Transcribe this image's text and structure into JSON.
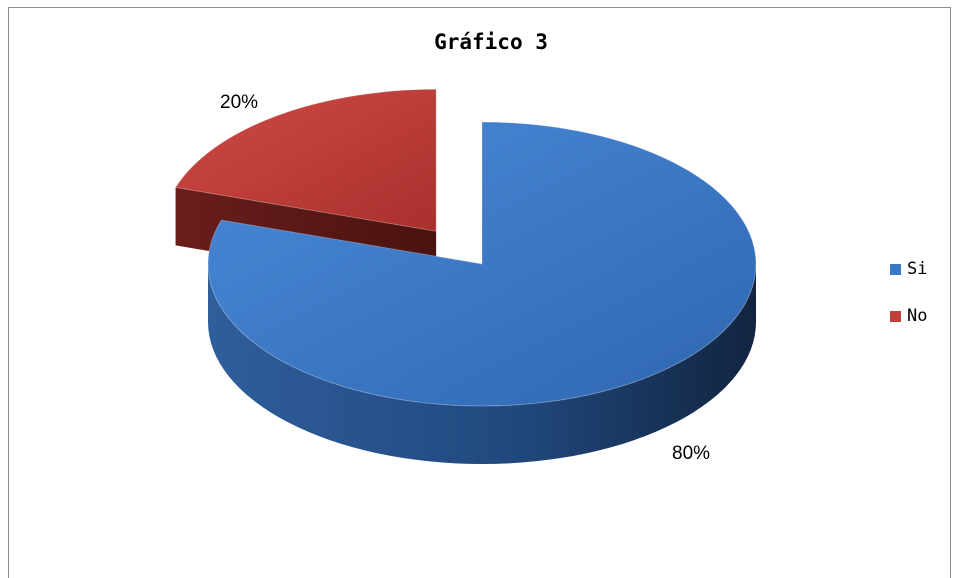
{
  "chart_data": {
    "type": "pie",
    "title": "Gráfico 3",
    "categories": [
      "Si",
      "No"
    ],
    "values": [
      80,
      20
    ],
    "labels": [
      "80%",
      "20%"
    ],
    "colors": [
      "#3b78c9",
      "#c0403c"
    ],
    "exploded": "No",
    "legend_position": "right"
  }
}
